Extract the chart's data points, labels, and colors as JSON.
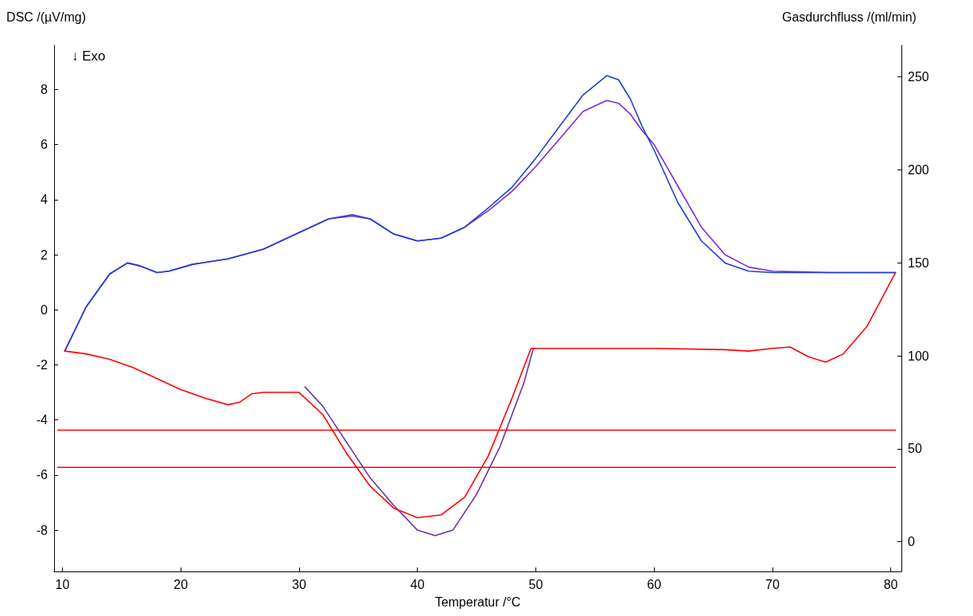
{
  "chart_data": {
    "type": "line",
    "xlabel": "Temperatur /°C",
    "ylabel": "DSC /(µV/mg)",
    "y2label": "Gasdurchfluss /(ml/min)",
    "annotations": [
      "↓ Exo"
    ],
    "xlim": [
      9.3,
      80.9
    ],
    "xticks": [
      10,
      20,
      30,
      40,
      50,
      60,
      70,
      80
    ],
    "ylim": [
      -9.5,
      9.6
    ],
    "yticks": [
      -8,
      -6,
      -4,
      -2,
      0,
      2,
      4,
      6,
      8
    ],
    "y2lim": [
      -16,
      267
    ],
    "y2ticks": [
      0,
      50,
      100,
      150,
      200,
      250
    ],
    "grid": false,
    "legend": false,
    "marker": "none",
    "line_style": "solid",
    "series": [
      {
        "color": "#7a2be0",
        "x": [
          10.2,
          12,
          14,
          15.5,
          16.5,
          18,
          19,
          21,
          24,
          27,
          30,
          32.5,
          34.5,
          36,
          38,
          40,
          42,
          44,
          46,
          48,
          50,
          52,
          54,
          56,
          57,
          58,
          59,
          60,
          62,
          64,
          66,
          68,
          70,
          75,
          80.4
        ],
        "values": [
          -1.5,
          0.1,
          1.3,
          1.7,
          1.6,
          1.35,
          1.4,
          1.65,
          1.85,
          2.2,
          2.8,
          3.3,
          3.4,
          3.3,
          2.75,
          2.5,
          2.6,
          3.0,
          3.6,
          4.3,
          5.2,
          6.2,
          7.2,
          7.6,
          7.5,
          7.1,
          6.5,
          6.0,
          4.5,
          3.0,
          2.0,
          1.55,
          1.4,
          1.35,
          1.35
        ]
      },
      {
        "color": "#1f3fd0",
        "x": [
          10.2,
          12,
          14,
          15.5,
          16.5,
          18,
          19,
          21,
          24,
          27,
          30,
          32.5,
          34.5,
          36,
          38,
          40,
          42,
          44,
          46,
          48,
          50,
          52,
          54,
          56,
          57,
          58,
          59,
          60,
          62,
          64,
          66,
          68,
          70,
          75,
          80.4
        ],
        "values": [
          -1.5,
          0.1,
          1.3,
          1.7,
          1.6,
          1.35,
          1.4,
          1.65,
          1.85,
          2.2,
          2.8,
          3.3,
          3.45,
          3.3,
          2.75,
          2.5,
          2.6,
          3.0,
          3.7,
          4.45,
          5.5,
          6.65,
          7.8,
          8.5,
          8.35,
          7.65,
          6.65,
          5.8,
          3.9,
          2.5,
          1.7,
          1.4,
          1.35,
          1.35,
          1.35
        ]
      },
      {
        "color": "#7030a0",
        "x": [
          30.5,
          32,
          34,
          36,
          38,
          40,
          41.5,
          43,
          45,
          47,
          49,
          49.8
        ],
        "values": [
          -2.8,
          -3.5,
          -4.8,
          -6.1,
          -7.1,
          -8.0,
          -8.2,
          -8.0,
          -6.7,
          -4.95,
          -2.65,
          -1.4
        ]
      },
      {
        "color": "#ff0000",
        "x": [
          10.2,
          12,
          14,
          16,
          18,
          20,
          22,
          24,
          25,
          26,
          27,
          29,
          30,
          32,
          34,
          36,
          38,
          40,
          42,
          44,
          46,
          48,
          49.6,
          60,
          66,
          68,
          70,
          71.5,
          73,
          74.5,
          76,
          78,
          80.4
        ],
        "values": [
          -1.5,
          -1.6,
          -1.8,
          -2.1,
          -2.5,
          -2.9,
          -3.2,
          -3.45,
          -3.35,
          -3.05,
          -3.0,
          -3.0,
          -3.0,
          -3.8,
          -5.2,
          -6.4,
          -7.2,
          -7.55,
          -7.45,
          -6.8,
          -5.3,
          -3.2,
          -1.4,
          -1.4,
          -1.45,
          -1.5,
          -1.4,
          -1.35,
          -1.7,
          -1.9,
          -1.6,
          -0.6,
          1.35
        ]
      },
      {
        "color": "#ff0000",
        "axis": "y2",
        "x": [
          9.6,
          80.4
        ],
        "values": [
          60,
          60
        ]
      },
      {
        "color": "#ff0000",
        "axis": "y2",
        "x": [
          9.6,
          80.4
        ],
        "values": [
          40,
          40
        ]
      }
    ]
  }
}
